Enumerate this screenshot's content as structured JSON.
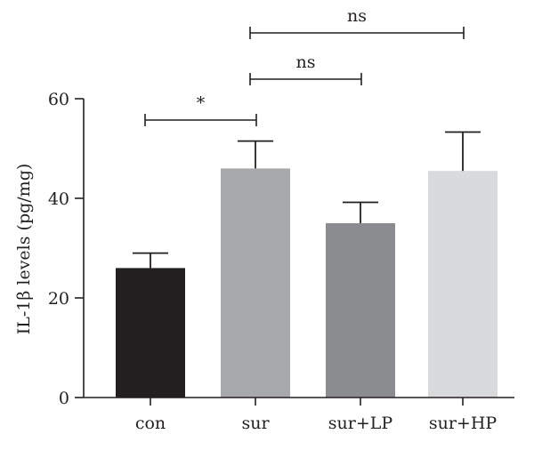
{
  "chart_data": {
    "type": "bar",
    "ylabel": "IL-1β levels (pg/mg)",
    "ylim": [
      0,
      60
    ],
    "yticks": [
      "0",
      "20",
      "40",
      "60"
    ],
    "categories": [
      "con",
      "sur",
      "sur+LP",
      "sur+HP"
    ],
    "values": [
      26,
      46,
      35,
      45.5
    ],
    "errors": [
      3,
      5.5,
      4.2,
      7.8
    ],
    "bar_colors": [
      "#231f20",
      "#a7a9ac",
      "#8a8c8f",
      "#d9dadb"
    ],
    "comparisons": [
      {
        "from": 0,
        "to": 1,
        "label": "*"
      },
      {
        "from": 1,
        "to": 2,
        "label": "ns"
      },
      {
        "from": 1,
        "to": 3,
        "label": "ns"
      }
    ]
  }
}
